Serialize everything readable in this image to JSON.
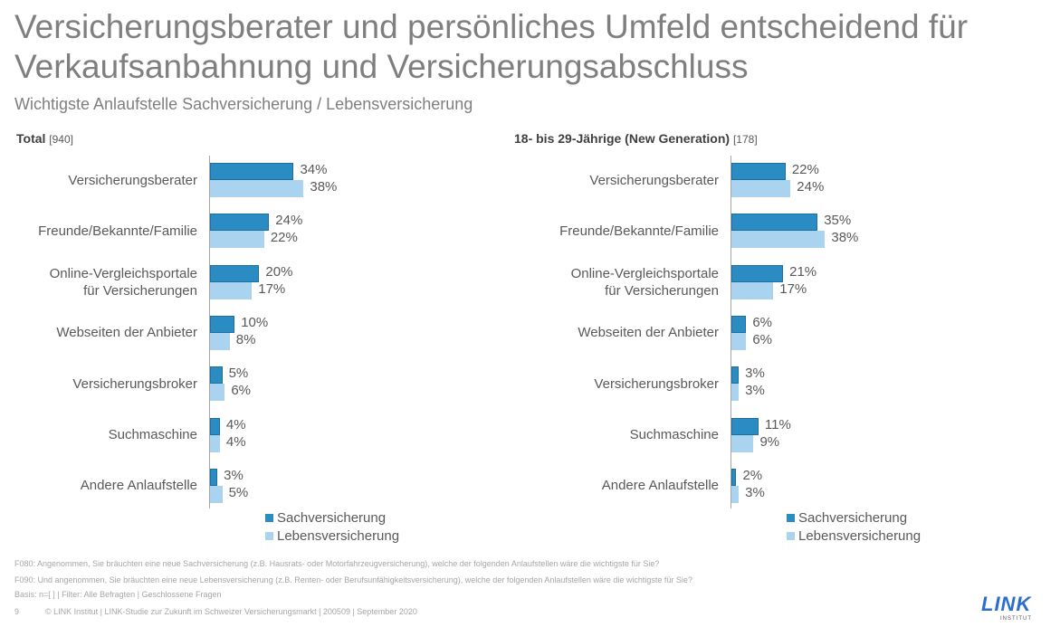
{
  "title": "Versicherungsberater und persönliches Umfeld entscheidend für Verkaufsanbahnung und Versicherungsabschluss",
  "subtitle": "Wichtigste Anlaufstelle Sachversicherung / Lebensversicherung",
  "colors": {
    "Sachversicherung": "#2b8cc4",
    "Lebensversicherung": "#a9d3ee"
  },
  "chart_data": [
    {
      "type": "bar",
      "orientation": "horizontal",
      "title": "Total",
      "base": "[940]",
      "categories": [
        "Versicherungsberater",
        "Freunde/Bekannte/Familie",
        "Online-Vergleichsportale\nfür Versicherungen",
        "Webseiten der Anbieter",
        "Versicherungsbroker",
        "Suchmaschine",
        "Andere Anlaufstelle"
      ],
      "series": [
        {
          "name": "Sachversicherung",
          "values": [
            34,
            24,
            20,
            10,
            5,
            4,
            3
          ]
        },
        {
          "name": "Lebensversicherung",
          "values": [
            38,
            22,
            17,
            8,
            6,
            4,
            5
          ]
        }
      ],
      "unit": "%",
      "legend": "bottom"
    },
    {
      "type": "bar",
      "orientation": "horizontal",
      "title": "18- bis 29-Jährige (New Generation)",
      "base": "[178]",
      "categories": [
        "Versicherungsberater",
        "Freunde/Bekannte/Familie",
        "Online-Vergleichsportale\nfür Versicherungen",
        "Webseiten der Anbieter",
        "Versicherungsbroker",
        "Suchmaschine",
        "Andere Anlaufstelle"
      ],
      "series": [
        {
          "name": "Sachversicherung",
          "values": [
            22,
            35,
            21,
            6,
            3,
            11,
            2
          ]
        },
        {
          "name": "Lebensversicherung",
          "values": [
            24,
            38,
            17,
            6,
            3,
            9,
            3
          ]
        }
      ],
      "unit": "%",
      "legend": "bottom"
    }
  ],
  "footer": {
    "q1": "F080: Angenommen, Sie bräuchten eine neue Sachversicherung (z.B. Hausrats- oder Motorfahrzeugversicherung), welche der folgenden Anlaufstellen wäre die wichtigste für Sie?",
    "q2": "F090: Und angenommen, Sie bräuchten eine neue Lebensversicherung (z.B. Renten- oder Berufsunfähigkeitsversicherung), welche der folgenden Anlaufstellen wäre die wichtigste für Sie?",
    "basis": "Basis: n=[ ] | Filter: Alle Befragten | Geschlossene Fragen",
    "page": "9",
    "copyright": "© LINK Institut | LINK-Studie zur Zukunft im Schweizer Versicherungsmarkt | 200509 | September 2020"
  },
  "logo": {
    "name": "LINK",
    "sub": "INSTITUT"
  }
}
